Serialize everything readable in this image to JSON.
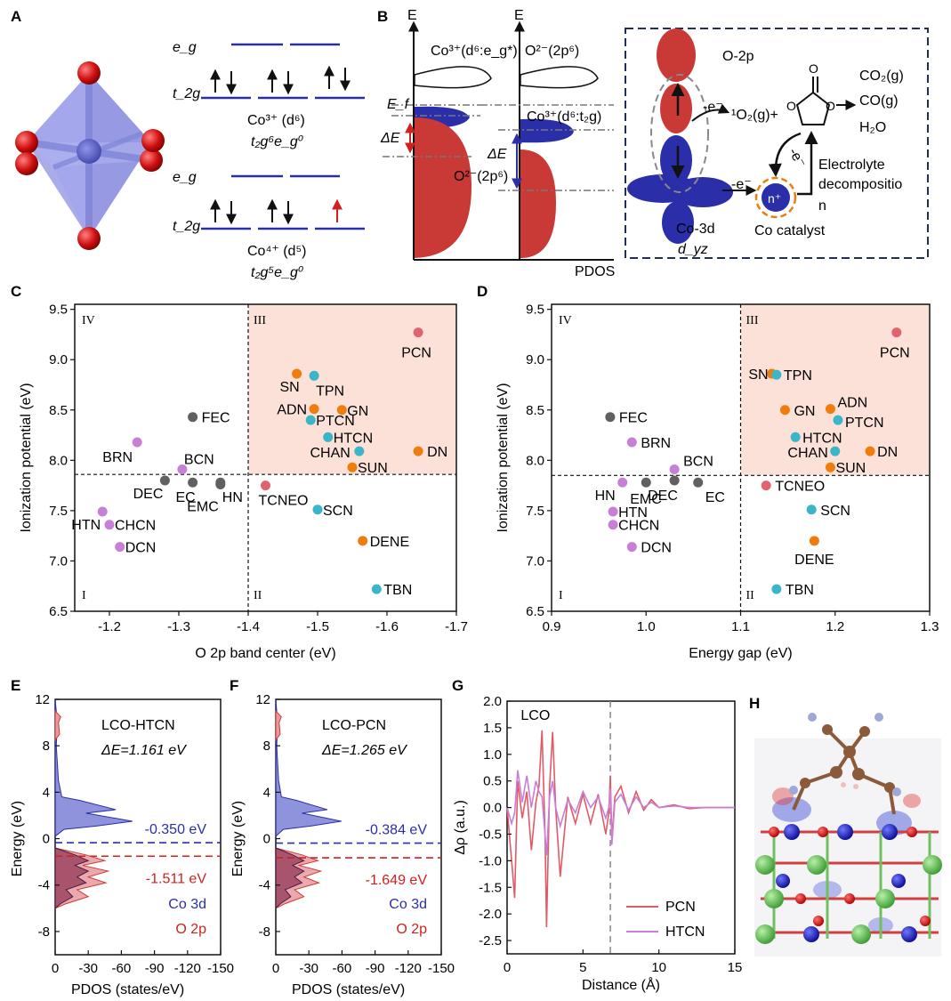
{
  "panels": {
    "A": "A",
    "B": "B",
    "C": "C",
    "D": "D",
    "E": "E",
    "F": "F",
    "G": "G",
    "H": "H"
  },
  "colors": {
    "gray": "#606060",
    "purple": "#c77fd8",
    "orange": "#ef7d0e",
    "teal": "#3ab5c9",
    "red": "#e06470",
    "shade": "#fbe1d8",
    "blue": "#2a2ea8",
    "oxred": "#cf3a36"
  },
  "panelA": {
    "eg1": "e_g",
    "t2g1": "t_2g",
    "eg2": "e_g",
    "t2g2": "t_2g",
    "co3": "Co³⁺ (d⁶)",
    "co3cfg": "t₂g⁶e_g⁰",
    "co4": "Co⁴⁺ (d⁵)",
    "co4cfg": "t₂g⁵e_g⁰"
  },
  "panelB": {
    "E1": "E",
    "E2": "E",
    "top1": "Co³⁺(d⁶:e_g*)",
    "top2": "O²⁻(2p⁶)",
    "Ef": "E_f",
    "dE1": "ΔE",
    "dE2": "ΔE",
    "mid2": "Co³⁺(d⁶:t₂g)",
    "o2p1": "O²⁻(2p⁶)",
    "pdos": "PDOS",
    "o2p": "O-2p",
    "co3d": "Co-3d",
    "dyz": "d_yz",
    "minus_e": "-e⁻",
    "o2g": "¹O₂(g)+",
    "co2": "CO₂(g)",
    "co": "CO(g)",
    "h2o": "H₂O",
    "elec1": "Electrolyte",
    "elec2": "decompositio",
    "elec3": "n",
    "ecat": "-e⁻",
    "eside": "-e⁻",
    "nplus": "n⁺",
    "cocat": "Co catalyst"
  },
  "chart_data": [
    {
      "id": "C",
      "type": "scatter",
      "xlabel": "O 2p band center (eV)",
      "ylabel": "Ionization potential (eV)",
      "xlim": [
        -1.15,
        -1.7
      ],
      "ylim": [
        6.5,
        9.55
      ],
      "xticks": [
        "-1.2",
        "-1.3",
        "-1.4",
        "-1.5",
        "-1.6",
        "-1.7"
      ],
      "yticks": [
        "6.5",
        "7.0",
        "7.5",
        "8.0",
        "8.5",
        "9.0",
        "9.5"
      ],
      "xdiv": -1.4,
      "ydiv": 7.86,
      "quadrants": [
        "I",
        "II",
        "III",
        "IV"
      ],
      "points": [
        {
          "label": "FEC",
          "x": -1.32,
          "y": 8.43,
          "c": "gray"
        },
        {
          "label": "BRN",
          "x": -1.24,
          "y": 8.18,
          "c": "purple"
        },
        {
          "label": "BCN",
          "x": -1.305,
          "y": 7.91,
          "c": "purple"
        },
        {
          "label": "DEC",
          "x": -1.28,
          "y": 7.8,
          "c": "gray"
        },
        {
          "label": "EC",
          "x": -1.32,
          "y": 7.78,
          "c": "gray"
        },
        {
          "label": "HN",
          "x": -1.36,
          "y": 7.78,
          "c": "gray"
        },
        {
          "label": "EMC",
          "x": -1.36,
          "y": 7.76,
          "c": "gray"
        },
        {
          "label": "HTN",
          "x": -1.19,
          "y": 7.49,
          "c": "purple"
        },
        {
          "label": "CHCN",
          "x": -1.2,
          "y": 7.36,
          "c": "purple"
        },
        {
          "label": "DCN",
          "x": -1.215,
          "y": 7.14,
          "c": "purple"
        },
        {
          "label": "PCN",
          "x": -1.645,
          "y": 9.27,
          "c": "red"
        },
        {
          "label": "SN",
          "x": -1.47,
          "y": 8.86,
          "c": "orange"
        },
        {
          "label": "TPN",
          "x": -1.495,
          "y": 8.84,
          "c": "teal"
        },
        {
          "label": "ADN",
          "x": -1.495,
          "y": 8.51,
          "c": "orange"
        },
        {
          "label": "GN",
          "x": -1.535,
          "y": 8.5,
          "c": "orange"
        },
        {
          "label": "PTCN",
          "x": -1.49,
          "y": 8.4,
          "c": "teal"
        },
        {
          "label": "HTCN",
          "x": -1.515,
          "y": 8.23,
          "c": "teal"
        },
        {
          "label": "CHAN",
          "x": -1.56,
          "y": 8.09,
          "c": "teal"
        },
        {
          "label": "DN",
          "x": -1.645,
          "y": 8.09,
          "c": "orange"
        },
        {
          "label": "SUN",
          "x": -1.55,
          "y": 7.93,
          "c": "orange"
        },
        {
          "label": "TCNEO",
          "x": -1.425,
          "y": 7.75,
          "c": "red"
        },
        {
          "label": "SCN",
          "x": -1.5,
          "y": 7.51,
          "c": "teal"
        },
        {
          "label": "DENE",
          "x": -1.565,
          "y": 7.2,
          "c": "orange"
        },
        {
          "label": "TBN",
          "x": -1.585,
          "y": 6.72,
          "c": "teal"
        }
      ]
    },
    {
      "id": "D",
      "type": "scatter",
      "xlabel": "Energy gap (eV)",
      "ylabel": "Ionization potential (eV)",
      "xlim": [
        0.9,
        1.3
      ],
      "ylim": [
        6.5,
        9.55
      ],
      "xticks": [
        "0.9",
        "1.0",
        "1.1",
        "1.2",
        "1.3"
      ],
      "yticks": [
        "6.5",
        "7.0",
        "7.5",
        "8.0",
        "8.5",
        "9.0",
        "9.5"
      ],
      "xdiv": 1.1,
      "ydiv": 7.85,
      "quadrants": [
        "I",
        "II",
        "III",
        "IV"
      ],
      "points": [
        {
          "label": "FEC",
          "x": 0.962,
          "y": 8.43,
          "c": "gray"
        },
        {
          "label": "BRN",
          "x": 0.985,
          "y": 8.18,
          "c": "purple"
        },
        {
          "label": "BCN",
          "x": 1.03,
          "y": 7.91,
          "c": "purple"
        },
        {
          "label": "HN",
          "x": 0.975,
          "y": 7.78,
          "c": "purple"
        },
        {
          "label": "EMC",
          "x": 1.0,
          "y": 7.78,
          "c": "gray"
        },
        {
          "label": "DEC",
          "x": 1.03,
          "y": 7.8,
          "c": "gray"
        },
        {
          "label": "EC",
          "x": 1.055,
          "y": 7.78,
          "c": "gray"
        },
        {
          "label": "HTN",
          "x": 0.965,
          "y": 7.49,
          "c": "purple"
        },
        {
          "label": "CHCN",
          "x": 0.965,
          "y": 7.36,
          "c": "purple"
        },
        {
          "label": "DCN",
          "x": 0.985,
          "y": 7.14,
          "c": "purple"
        },
        {
          "label": "PCN",
          "x": 1.265,
          "y": 9.27,
          "c": "red"
        },
        {
          "label": "SN",
          "x": 1.133,
          "y": 8.86,
          "c": "orange"
        },
        {
          "label": "TPN",
          "x": 1.138,
          "y": 8.85,
          "c": "teal"
        },
        {
          "label": "ADN",
          "x": 1.195,
          "y": 8.51,
          "c": "orange"
        },
        {
          "label": "GN",
          "x": 1.147,
          "y": 8.5,
          "c": "orange"
        },
        {
          "label": "PTCN",
          "x": 1.203,
          "y": 8.4,
          "c": "teal"
        },
        {
          "label": "HTCN",
          "x": 1.158,
          "y": 8.23,
          "c": "teal"
        },
        {
          "label": "CHAN",
          "x": 1.2,
          "y": 8.09,
          "c": "teal"
        },
        {
          "label": "DN",
          "x": 1.237,
          "y": 8.09,
          "c": "orange"
        },
        {
          "label": "SUN",
          "x": 1.195,
          "y": 7.93,
          "c": "orange"
        },
        {
          "label": "TCNEO",
          "x": 1.127,
          "y": 7.75,
          "c": "red"
        },
        {
          "label": "SCN",
          "x": 1.175,
          "y": 7.51,
          "c": "teal"
        },
        {
          "label": "DENE",
          "x": 1.178,
          "y": 7.2,
          "c": "orange"
        },
        {
          "label": "TBN",
          "x": 1.138,
          "y": 6.72,
          "c": "teal"
        }
      ]
    },
    {
      "id": "E",
      "type": "area",
      "title": "LCO-HTCN",
      "dE": "ΔE=1.161 eV",
      "xlabel": "PDOS (states/eV)",
      "ylabel": "Energy (eV)",
      "xticks": [
        "0",
        "-30",
        "-60",
        "-90",
        "-120",
        "-150"
      ],
      "yticks": [
        "-8",
        "-4",
        "0",
        "4",
        "8",
        "12"
      ],
      "ylim": [
        -10,
        12
      ],
      "co_center": "-0.350 eV",
      "o_center": "-1.511 eV",
      "co_center_value": -0.35,
      "o_center_value": -1.511,
      "legend": [
        "Co 3d",
        "O 2p"
      ]
    },
    {
      "id": "F",
      "type": "area",
      "title": "LCO-PCN",
      "dE": "ΔE=1.265 eV",
      "xlabel": "PDOS (states/eV)",
      "ylabel": "Energy (eV)",
      "xticks": [
        "0",
        "-30",
        "-60",
        "-90",
        "-120",
        "-150"
      ],
      "yticks": [
        "-8",
        "-4",
        "0",
        "4",
        "8",
        "12"
      ],
      "ylim": [
        -10,
        12
      ],
      "co_center": "-0.384 eV",
      "o_center": "-1.649 eV",
      "co_center_value": -0.384,
      "o_center_value": -1.649,
      "legend": [
        "Co 3d",
        "O 2p"
      ]
    },
    {
      "id": "G",
      "type": "line",
      "xlabel": "Distance (Å)",
      "ylabel": "Δρ (a.u.)",
      "xlim": [
        0,
        15
      ],
      "ylim": [
        -2.75,
        2.0
      ],
      "xticks": [
        "0",
        "5",
        "10",
        "15"
      ],
      "yticks": [
        "-2.5",
        "-2.0",
        "-1.5",
        "-1.0",
        "-0.5",
        "0.0",
        "0.5",
        "1.0",
        "1.5",
        "2.0"
      ],
      "annotation": "LCO",
      "divider_x": 6.8,
      "series": [
        {
          "name": "PCN",
          "x": [
            0,
            0.3,
            0.5,
            0.7,
            1.0,
            1.3,
            1.6,
            1.9,
            2.1,
            2.3,
            2.5,
            2.6,
            2.8,
            3.0,
            3.2,
            3.5,
            4.0,
            4.5,
            5.0,
            5.5,
            6.0,
            6.5,
            6.7,
            6.8,
            6.9,
            7.1,
            7.5,
            8.0,
            8.5,
            9.0,
            9.5,
            10,
            11,
            12,
            13,
            15
          ],
          "y": [
            0,
            -1.0,
            -1.7,
            0.5,
            -0.2,
            0.3,
            -0.8,
            0.1,
            0.4,
            1.45,
            -0.5,
            -2.25,
            0.4,
            1.42,
            0.0,
            -1.3,
            0.2,
            -0.3,
            0.25,
            -0.3,
            0.25,
            -0.5,
            -0.1,
            0.6,
            -0.6,
            0.2,
            0.4,
            -0.1,
            0.3,
            -0.05,
            0.15,
            0.0,
            0.05,
            -0.02,
            0.0,
            0.0
          ]
        },
        {
          "name": "HTCN",
          "x": [
            0,
            0.3,
            0.5,
            0.7,
            1.0,
            1.3,
            1.6,
            1.9,
            2.1,
            2.3,
            2.5,
            2.6,
            2.8,
            3.0,
            3.2,
            3.5,
            4.0,
            4.5,
            5.0,
            5.5,
            6.0,
            6.5,
            6.7,
            6.8,
            6.9,
            7.1,
            7.5,
            8.0,
            8.5,
            9.0,
            9.5,
            10,
            11,
            12,
            13,
            15
          ],
          "y": [
            0,
            -0.3,
            -0.1,
            0.7,
            0.1,
            0.6,
            0.0,
            0.5,
            0.3,
            0.2,
            -0.5,
            -0.9,
            0.2,
            0.5,
            0.0,
            -0.35,
            0.15,
            -0.1,
            0.3,
            0.0,
            0.2,
            -0.2,
            0.0,
            0.35,
            -0.7,
            0.1,
            0.25,
            -0.05,
            0.2,
            0.0,
            0.1,
            0.0,
            0.03,
            0.0,
            0.0,
            0.0
          ]
        }
      ],
      "legend": [
        "PCN",
        "HTCN"
      ]
    }
  ]
}
